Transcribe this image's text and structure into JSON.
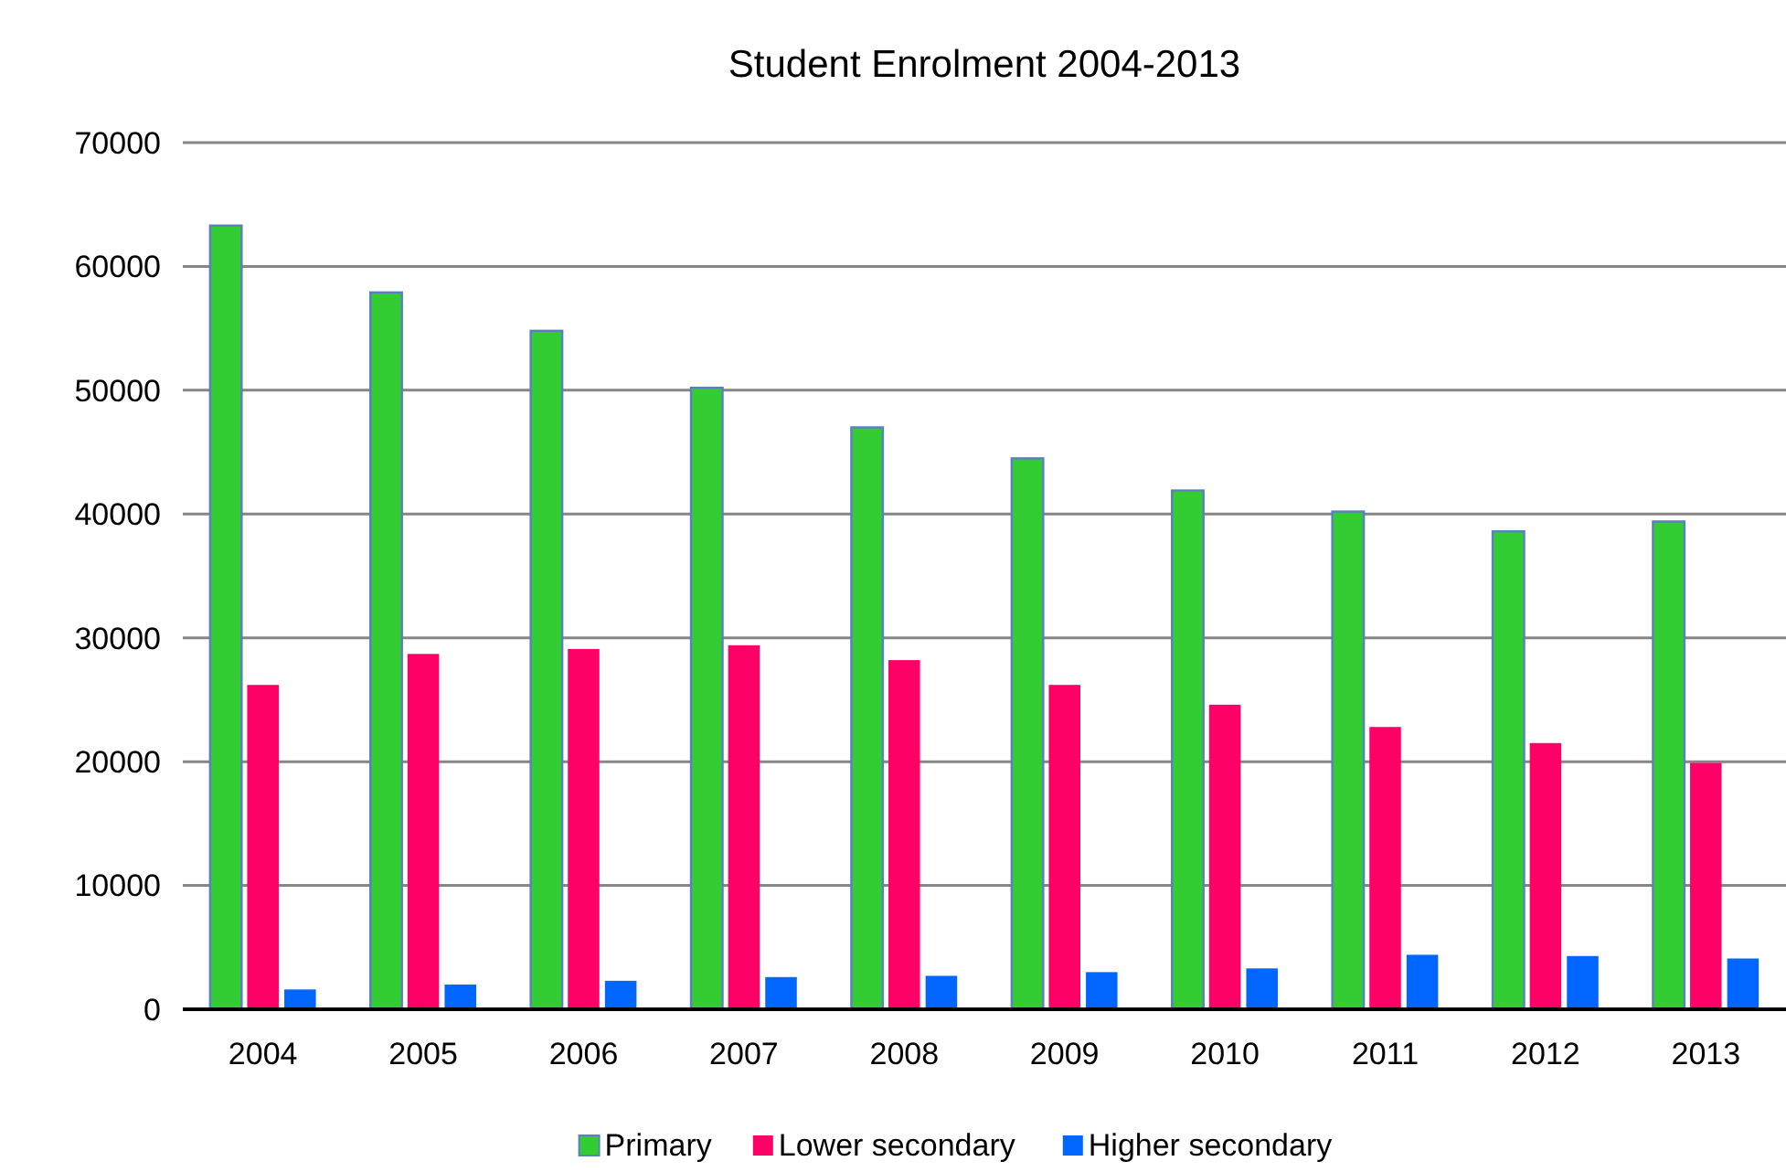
{
  "chart_data": {
    "type": "bar",
    "title": "Student Enrolment 2004-2013",
    "categories": [
      "2004",
      "2005",
      "2006",
      "2007",
      "2008",
      "2009",
      "2010",
      "2011",
      "2012",
      "2013"
    ],
    "series": [
      {
        "name": "Primary",
        "color": "#33cc33",
        "values": [
          63300,
          57900,
          54800,
          50200,
          47000,
          44500,
          41900,
          40200,
          38600,
          39400
        ]
      },
      {
        "name": "Lower secondary",
        "color": "#ff0066",
        "values": [
          26200,
          28700,
          29100,
          29400,
          28200,
          26200,
          24600,
          22800,
          21500,
          19900
        ]
      },
      {
        "name": "Higher secondary",
        "color": "#0066ff",
        "values": [
          1600,
          2000,
          2300,
          2600,
          2700,
          3000,
          3300,
          4400,
          4300,
          4100
        ]
      }
    ],
    "ylim": [
      0,
      70000
    ],
    "yticks": [
      0,
      10000,
      20000,
      30000,
      40000,
      50000,
      60000,
      70000
    ],
    "grid": "y",
    "legend": "bottom"
  }
}
